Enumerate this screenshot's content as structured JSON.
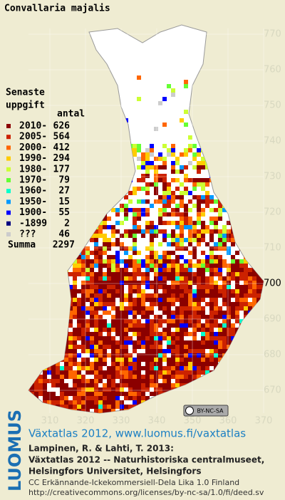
{
  "title": "Convallaria majalis",
  "legend": {
    "heading": [
      "Senaste",
      "uppgift"
    ],
    "count_header": "antal",
    "items": [
      {
        "label": "2010-",
        "count": "626",
        "color": "#8b0000"
      },
      {
        "label": "2005-",
        "count": "564",
        "color": "#cc2200"
      },
      {
        "label": "2000-",
        "count": "412",
        "color": "#ff6600"
      },
      {
        "label": "1990-",
        "count": "294",
        "color": "#ffcc00"
      },
      {
        "label": "1980-",
        "count": "177",
        "color": "#ccff33"
      },
      {
        "label": "1970-",
        "count": "79",
        "color": "#66ff33"
      },
      {
        "label": "1960-",
        "count": "27",
        "color": "#00ffcc"
      },
      {
        "label": "1950-",
        "count": "15",
        "color": "#0099ff"
      },
      {
        "label": "1900-",
        "count": "55",
        "color": "#0000ff"
      },
      {
        "label": "-1899",
        "count": "2",
        "color": "#000080"
      },
      {
        "label": "???",
        "count": "46",
        "color": "#cccccc"
      }
    ],
    "total": {
      "label": "Summa",
      "count": "2297"
    }
  },
  "grid": {
    "x_ticks": [
      310,
      320,
      330,
      340,
      350,
      360,
      370
    ],
    "y_ticks": [
      770,
      760,
      750,
      740,
      730,
      720,
      710,
      700,
      690,
      680,
      670
    ]
  },
  "license_badge": "BY-NC-SA",
  "footer": {
    "logo": "LUOMUS",
    "atlas": "Växtatlas 2012, www.luomus.fi/vaxtatlas",
    "citation": [
      "Lampinen, R. & Lahti, T. 2013:",
      "Växtatlas 2012 -- Naturhistoriska centralmuseet,",
      "Helsingfors Universitet, Helsingfors"
    ],
    "license": "CC Erkännande-Ickekommersiell-Dela Lika 1.0 Finland",
    "license_url": "http://creativecommons.org/licenses/by-nc-sa/1.0/fi/deed.sv"
  }
}
